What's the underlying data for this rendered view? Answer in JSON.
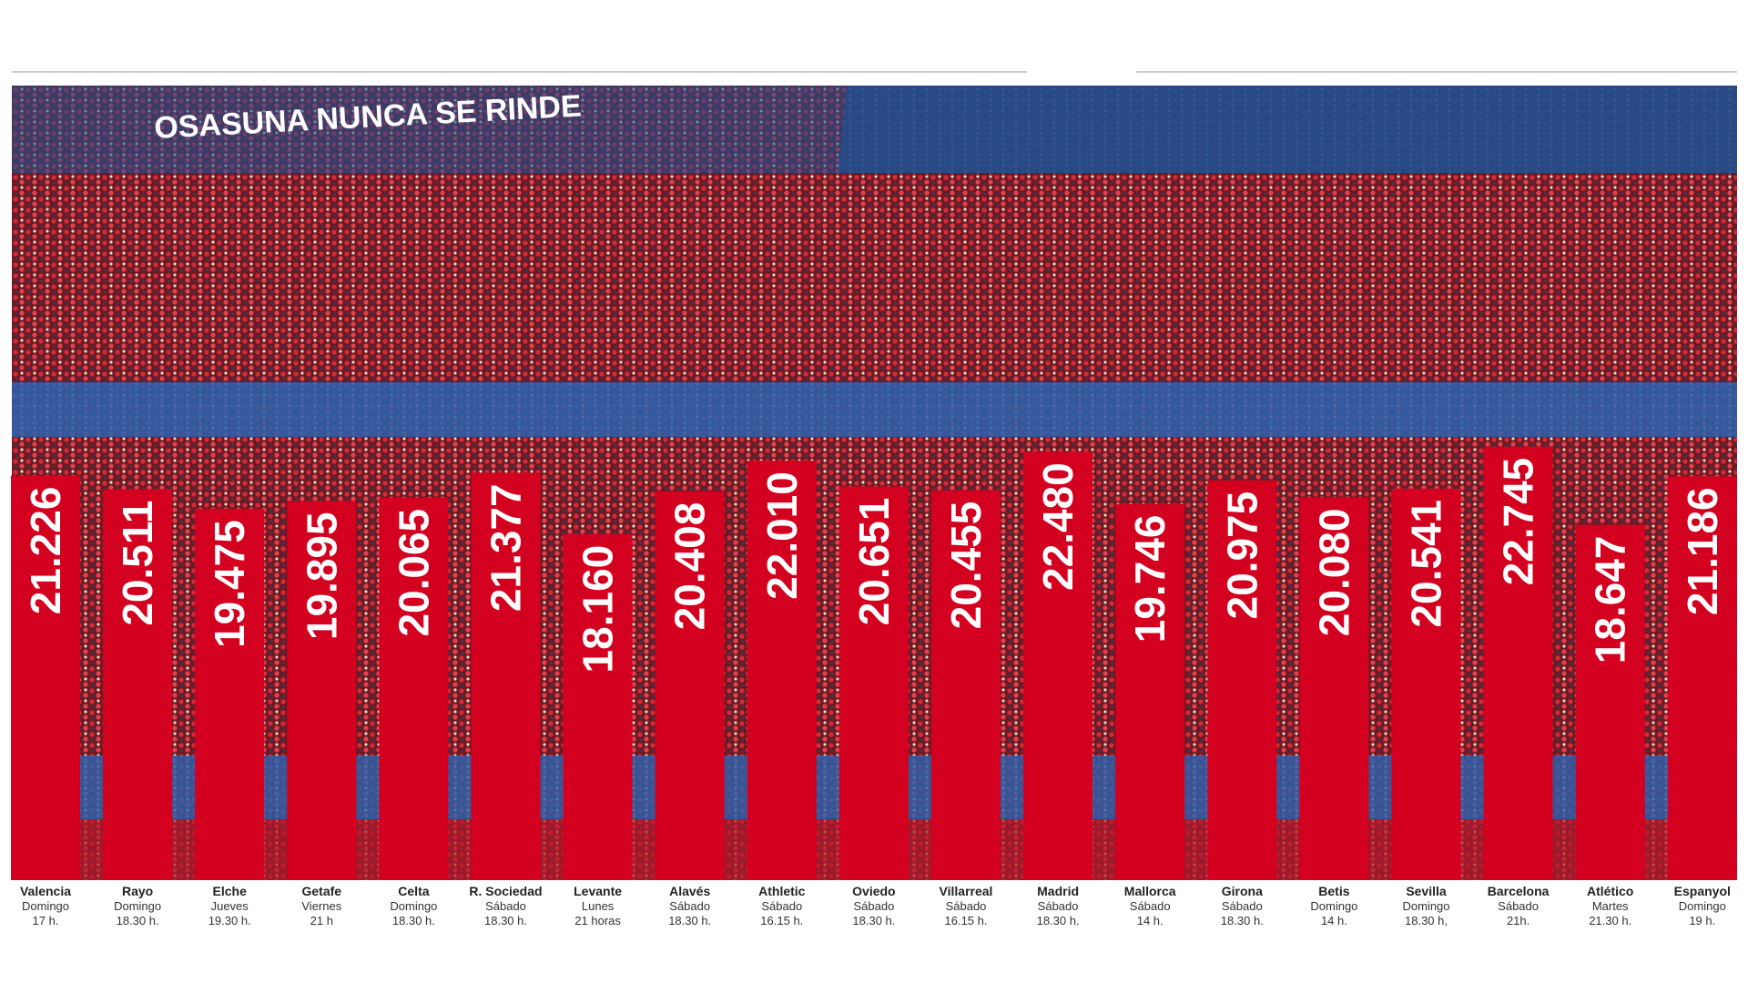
{
  "chart_data": {
    "type": "bar",
    "banner": "OSASUNA NUNCA SE RINDE",
    "categories": [
      "Valencia",
      "Rayo",
      "Elche",
      "Getafe",
      "Celta",
      "R. Sociedad",
      "Levante",
      "Alavés",
      "Athletic",
      "Oviedo",
      "Villarreal",
      "Madrid",
      "Mallorca",
      "Girona",
      "Betis",
      "Sevilla",
      "Barcelona",
      "Atlético",
      "Espanyol"
    ],
    "days": [
      "Domingo",
      "Domingo",
      "Jueves",
      "Viernes",
      "Domingo",
      "Sábado",
      "Lunes",
      "Sábado",
      "Sábado",
      "Sábado",
      "Sábado",
      "Sábado",
      "Sábado",
      "Sábado",
      "Domingo",
      "Domingo",
      "Sábado",
      "Martes",
      "Domingo"
    ],
    "times": [
      "17 h.",
      "18.30 h.",
      "19.30 h.",
      "21 h",
      "18.30 h.",
      "18.30 h.",
      "21 horas",
      "18.30 h.",
      "16.15 h.",
      "18.30 h.",
      "16.15 h.",
      "18.30 h.",
      "14 h.",
      "18.30 h.",
      "14 h.",
      "18.30 h,",
      "21h.",
      "21.30 h.",
      "19 h."
    ],
    "values": [
      21226,
      20511,
      19475,
      19895,
      20065,
      21377,
      18160,
      20408,
      22010,
      20651,
      20455,
      22480,
      19746,
      20975,
      20080,
      20541,
      22745,
      18647,
      21186
    ],
    "value_labels": [
      "21.226",
      "20.511",
      "19.475",
      "19.895",
      "20.065",
      "21.377",
      "18.160",
      "20.408",
      "22.010",
      "20.651",
      "20.455",
      "22.480",
      "19.746",
      "20.975",
      "20.080",
      "20.541",
      "22.745",
      "18.647",
      "21.186"
    ],
    "color": "#d3001f",
    "ylim": [
      0,
      25000
    ]
  }
}
